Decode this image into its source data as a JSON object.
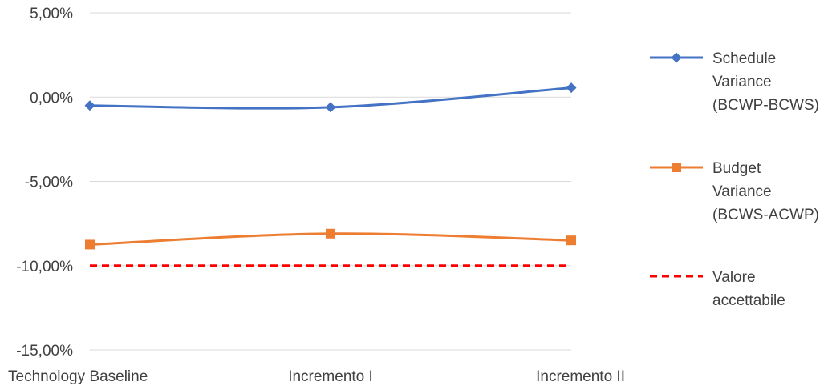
{
  "chart_data": {
    "type": "line",
    "title": "",
    "xlabel": "",
    "ylabel": "",
    "categories": [
      "Technology Baseline",
      "Incremento I",
      "Incremento II"
    ],
    "ylim": [
      -15,
      5
    ],
    "yticks": [
      5,
      0,
      -5,
      -10,
      -15
    ],
    "ytick_labels": [
      "5,00%",
      "0,00%",
      "-5,00%",
      "-10,00%",
      "-15,00%"
    ],
    "grid": true,
    "legend_position": "right",
    "series": [
      {
        "name": "Schedule Variance (BCWP-BCWS)",
        "legend_lines": [
          "Schedule",
          "Variance",
          "(BCWP-BCWS)"
        ],
        "values": [
          -0.5,
          -0.6,
          0.55
        ],
        "color": "#4472C4",
        "marker": "diamond",
        "smooth": true,
        "dashed": false
      },
      {
        "name": "Budget Variance (BCWS-ACWP)",
        "legend_lines": [
          "Budget",
          "Variance",
          "(BCWS-ACWP)"
        ],
        "values": [
          -8.75,
          -8.1,
          -8.5
        ],
        "color": "#ED7D31",
        "marker": "square",
        "smooth": true,
        "dashed": false
      },
      {
        "name": "Valore accettabile",
        "legend_lines": [
          "Valore",
          "accettabile"
        ],
        "values": [
          -10,
          -10,
          -10
        ],
        "color": "#FF0000",
        "marker": "none",
        "smooth": false,
        "dashed": true
      }
    ]
  }
}
